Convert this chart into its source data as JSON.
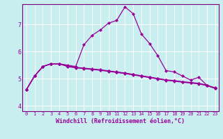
{
  "xlabel": "Windchill (Refroidissement éolien,°C)",
  "bg_color": "#c8eef0",
  "line_color": "#990099",
  "xlim": [
    -0.5,
    23.4
  ],
  "ylim": [
    3.8,
    7.75
  ],
  "yticks": [
    4,
    5,
    6,
    7
  ],
  "xticks": [
    0,
    1,
    2,
    3,
    4,
    5,
    6,
    7,
    8,
    9,
    10,
    11,
    12,
    13,
    14,
    15,
    16,
    17,
    18,
    19,
    20,
    21,
    22,
    23
  ],
  "line1": [
    4.6,
    5.1,
    5.45,
    5.55,
    5.55,
    5.5,
    5.45,
    6.25,
    6.6,
    6.8,
    7.05,
    7.15,
    7.65,
    7.4,
    6.65,
    6.3,
    5.85,
    5.3,
    5.25,
    5.1,
    4.95,
    5.05,
    4.75,
    4.65
  ],
  "line2": [
    4.6,
    5.1,
    5.45,
    5.55,
    5.55,
    5.45,
    5.4,
    5.38,
    5.35,
    5.32,
    5.28,
    5.24,
    5.2,
    5.15,
    5.1,
    5.05,
    5.0,
    4.95,
    4.92,
    4.88,
    4.85,
    4.82,
    4.75,
    4.65
  ],
  "line3": [
    4.6,
    5.1,
    5.45,
    5.55,
    5.55,
    5.48,
    5.42,
    5.39,
    5.36,
    5.33,
    5.29,
    5.25,
    5.21,
    5.16,
    5.11,
    5.06,
    5.01,
    4.96,
    4.93,
    4.89,
    4.86,
    4.83,
    4.76,
    4.66
  ],
  "line4": [
    4.6,
    5.1,
    5.45,
    5.55,
    5.55,
    5.46,
    5.41,
    5.37,
    5.34,
    5.31,
    5.27,
    5.23,
    5.19,
    5.14,
    5.09,
    5.04,
    4.99,
    4.94,
    4.91,
    4.87,
    4.84,
    4.81,
    4.74,
    4.64
  ],
  "grid_color": "#ffffff",
  "spine_color": "#7f007f",
  "tick_fontsize": 5.0,
  "xlabel_fontsize": 6.0,
  "marker_size": 2.2,
  "linewidth": 0.9
}
